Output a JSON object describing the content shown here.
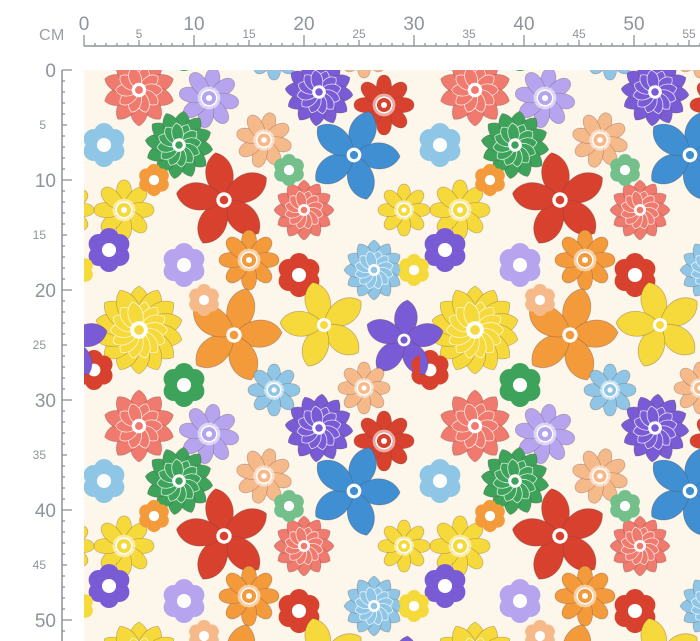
{
  "ruler": {
    "unit": "CM",
    "top_labels": [
      "0",
      "5",
      "10",
      "15",
      "20",
      "25",
      "30",
      "35",
      "40",
      "45",
      "50",
      "55"
    ],
    "left_labels": [
      "0",
      "5",
      "10",
      "15",
      "20",
      "25",
      "30",
      "35",
      "40",
      "45",
      "50"
    ],
    "major_values": [
      0,
      10,
      20,
      30,
      40,
      50
    ],
    "colors": {
      "line": "#8d949a",
      "text": "#8d949a"
    }
  },
  "pattern": {
    "description_icon": "floral-pattern",
    "palette": {
      "red": "#d9412f",
      "coral": "#ef7a6d",
      "blue": "#3f8fd2",
      "light_blue": "#8fc6e6",
      "green": "#3da35a",
      "light_green": "#74c08a",
      "yellow": "#f6d93a",
      "orange": "#f39a3a",
      "peach": "#f6b98a",
      "purple": "#7a5bd6",
      "lavender": "#b6a4ee",
      "cream": "#fdf6ea"
    }
  }
}
